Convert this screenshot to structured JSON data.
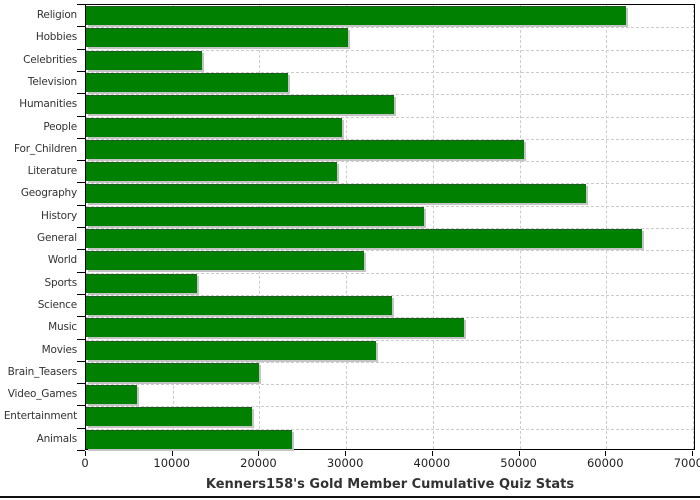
{
  "chart_data": {
    "type": "bar",
    "orientation": "horizontal",
    "title": "Kenners158's Gold Member Cumulative Quiz Stats",
    "categories": [
      "Religion",
      "Hobbies",
      "Celebrities",
      "Television",
      "Humanities",
      "People",
      "For_Children",
      "Literature",
      "Geography",
      "History",
      "General",
      "World",
      "Sports",
      "Science",
      "Music",
      "Movies",
      "Brain_Teasers",
      "Video_Games",
      "Entertainment",
      "Animals"
    ],
    "values": [
      62300,
      30200,
      13400,
      23250,
      35550,
      29500,
      50500,
      29000,
      57700,
      39000,
      64100,
      32100,
      12800,
      35250,
      43600,
      33450,
      19900,
      5850,
      19200,
      23700
    ],
    "xlabel": "",
    "ylabel": "",
    "xlim": [
      0,
      70000
    ],
    "x_ticks": [
      0,
      10000,
      20000,
      30000,
      40000,
      50000,
      60000,
      70000
    ],
    "x_tick_labels": [
      "0",
      "10000",
      "20000",
      "30000",
      "40000",
      "50000",
      "60000",
      "70000"
    ],
    "grid": "dashed-both-axes",
    "legend": "none",
    "colors": {
      "bar_fill": "#008000",
      "bar_shadow": "#c4c4c4",
      "grid_line": "#cccccc",
      "axis_frame": "#000000",
      "text": "#333333"
    }
  }
}
